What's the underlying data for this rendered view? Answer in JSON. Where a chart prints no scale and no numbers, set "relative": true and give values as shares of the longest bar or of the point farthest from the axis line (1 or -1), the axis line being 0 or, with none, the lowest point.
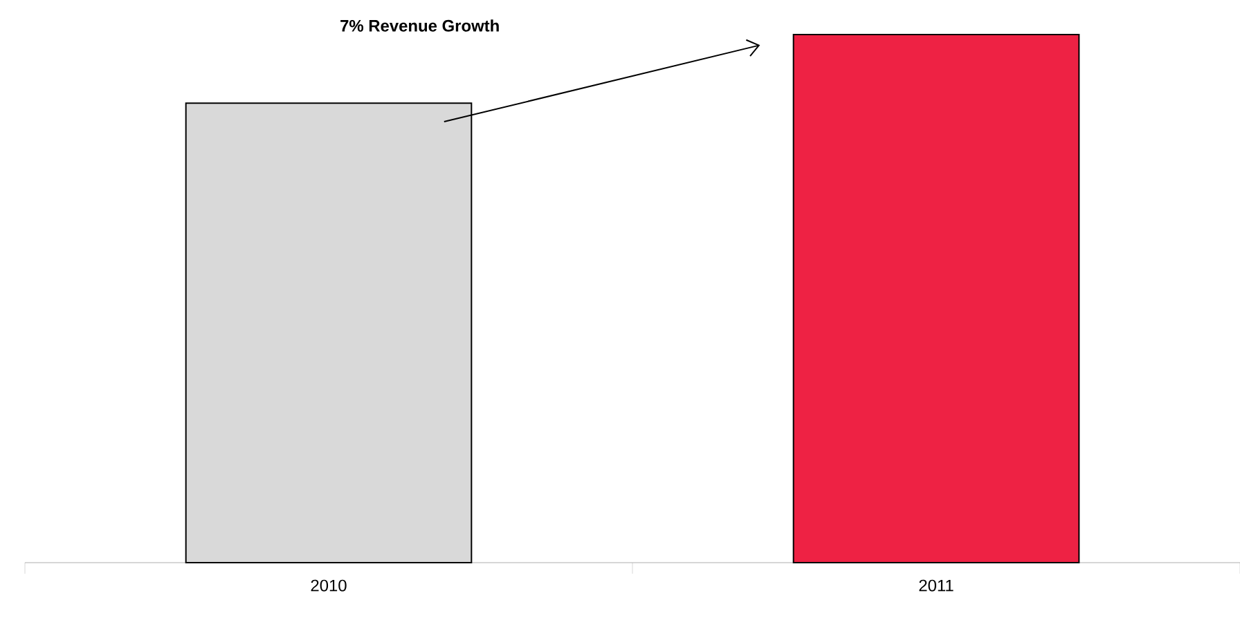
{
  "chart_data": {
    "type": "bar",
    "relative": true,
    "categories": [
      "2010",
      "2011"
    ],
    "values": [
      0.87,
      1
    ],
    "colors": [
      "#d9d9d9",
      "#ee2244"
    ],
    "annotations": [
      "**7%  Revenue Growth**"
    ]
  }
}
